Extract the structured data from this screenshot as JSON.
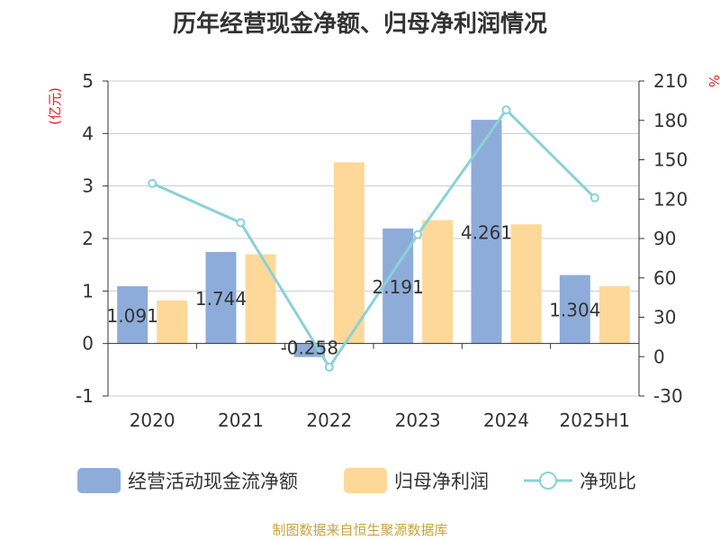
{
  "header": {
    "title": "历年经营现金净额、归母净利润情况"
  },
  "footer": {
    "source": "制图数据来自恒生聚源数据库"
  },
  "colors": {
    "cash_flow": "#8eacd9",
    "net_profit": "#fed899",
    "ratio_line": "#89d2d6",
    "axis_unit": "#e02020",
    "text": "#333333",
    "grid": "#cccccc",
    "source": "#c8a23c"
  },
  "chart_data": {
    "type": "bar",
    "title": "历年经营现金净额、归母净利润情况",
    "categories": [
      "2020",
      "2021",
      "2022",
      "2023",
      "2024",
      "2025H1"
    ],
    "y_left": {
      "unit": "(亿元)",
      "ylim": [
        -1,
        5
      ],
      "ticks": [
        5,
        4,
        3,
        2,
        1,
        0,
        -1
      ]
    },
    "y_right": {
      "unit": "%",
      "ylim": [
        -30,
        210
      ],
      "ticks": [
        210,
        180,
        150,
        120,
        90,
        60,
        30,
        0,
        -30
      ]
    },
    "series": [
      {
        "name": "经营活动现金流净额",
        "type": "bar",
        "axis": "left",
        "values": [
          1.091,
          1.744,
          -0.258,
          2.191,
          4.261,
          1.304
        ],
        "labels": [
          "1.091",
          "1.744",
          "-0.258",
          "2.191",
          "4.261",
          "1.304"
        ]
      },
      {
        "name": "归母净利润",
        "type": "bar",
        "axis": "left",
        "values": [
          0.82,
          1.7,
          3.45,
          2.35,
          2.27,
          1.09
        ]
      },
      {
        "name": "净现比",
        "type": "line",
        "axis": "right",
        "values": [
          132,
          102,
          -8,
          93,
          188,
          121
        ]
      }
    ],
    "grid": true,
    "legend_position": "bottom"
  }
}
